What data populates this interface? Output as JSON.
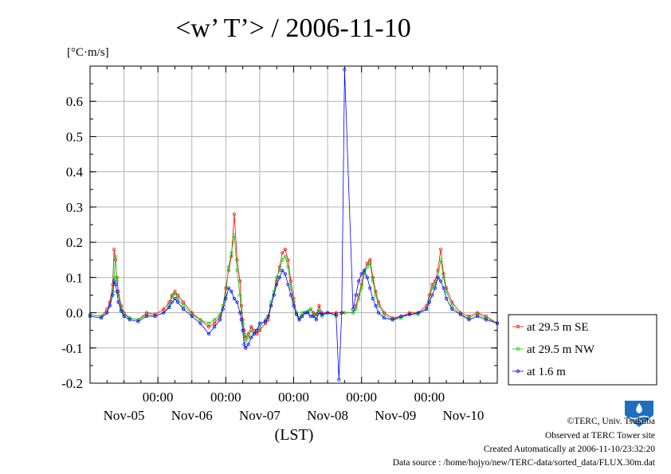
{
  "chart_data": {
    "type": "line",
    "title": "<w’ T’> / 2006-11-10",
    "ylabel": "[°C·m/s]",
    "xlabel": "(LST)",
    "ylim": [
      -0.2,
      0.7
    ],
    "yticks": [
      -0.2,
      -0.1,
      0.0,
      0.1,
      0.2,
      0.3,
      0.4,
      0.5,
      0.6
    ],
    "yticklabels": [
      "-0.2",
      "-0.1",
      "0.0",
      "0.1",
      "0.2",
      "0.3",
      "0.4",
      "0.5",
      "0.6"
    ],
    "x_unit": "hours since 2006-11-04 00:00 LST",
    "xlim": [
      0,
      144
    ],
    "x_time_labels": [
      "00:00",
      "00:00",
      "00:00",
      "00:00",
      "00:00"
    ],
    "x_day_labels": [
      "Nov-05",
      "Nov-06",
      "Nov-07",
      "Nov-08",
      "Nov-09",
      "Nov-10"
    ],
    "grid": true,
    "legend_position": "right",
    "series": [
      {
        "name": "at 29.5 m SE",
        "color": "#ff0000",
        "x": [
          0,
          4,
          6,
          7,
          8,
          8.5,
          9,
          9.5,
          10,
          11,
          12,
          14,
          17,
          20,
          23,
          26,
          28,
          29,
          30,
          31,
          33,
          36,
          39,
          42,
          44,
          46,
          47,
          48,
          49,
          50,
          51,
          52,
          53,
          53.5,
          54,
          54.5,
          55,
          56,
          57,
          58,
          59,
          60,
          62,
          63,
          64,
          65,
          66,
          67,
          68,
          69,
          70,
          71,
          72,
          73,
          74,
          75,
          76,
          77,
          78,
          79,
          80,
          81,
          82,
          84,
          87,
          90,
          93,
          94,
          95,
          96,
          97,
          98,
          99,
          100,
          101,
          102,
          104,
          107,
          110,
          113,
          116,
          119,
          120,
          121,
          122,
          123,
          124,
          125,
          126,
          128,
          131,
          134,
          137,
          140,
          144
        ],
        "y": [
          -0.005,
          -0.01,
          0.01,
          0.03,
          0.08,
          0.18,
          0.15,
          0.1,
          0.06,
          0.02,
          0.0,
          -0.015,
          -0.02,
          0.0,
          -0.005,
          0.01,
          0.03,
          0.05,
          0.06,
          0.05,
          0.03,
          0.0,
          -0.02,
          -0.04,
          -0.03,
          -0.01,
          0.02,
          0.07,
          0.12,
          0.16,
          0.28,
          0.15,
          0.09,
          0.02,
          -0.02,
          -0.05,
          -0.07,
          -0.06,
          -0.04,
          -0.05,
          -0.06,
          -0.05,
          -0.03,
          -0.02,
          0.02,
          0.05,
          0.09,
          0.13,
          0.17,
          0.18,
          0.15,
          0.09,
          0.04,
          0.0,
          -0.02,
          -0.01,
          0.0,
          0.0,
          0.01,
          0.0,
          -0.005,
          0.02,
          0.0,
          0.0,
          0.0,
          0.0,
          0.0,
          0.02,
          0.05,
          0.08,
          0.12,
          0.14,
          0.15,
          0.1,
          0.06,
          0.03,
          0.0,
          -0.015,
          -0.01,
          0.0,
          0.0,
          0.02,
          0.05,
          0.08,
          0.09,
          0.12,
          0.18,
          0.11,
          0.07,
          0.03,
          0.0,
          -0.01,
          0.0,
          -0.01,
          -0.03
        ]
      },
      {
        "name": "at 29.5 m NW",
        "color": "#00cc00",
        "x": [
          0,
          4,
          6,
          7,
          8,
          8.5,
          9,
          9.5,
          10,
          11,
          12,
          14,
          17,
          20,
          23,
          26,
          28,
          29,
          30,
          31,
          33,
          36,
          39,
          42,
          44,
          46,
          47,
          48,
          49,
          50,
          51,
          52,
          53,
          53.5,
          54,
          54.5,
          55,
          56,
          57,
          58,
          59,
          60,
          62,
          63,
          64,
          65,
          66,
          67,
          68,
          69,
          70,
          71,
          72,
          73,
          74,
          75,
          76,
          77,
          78,
          79,
          80,
          81,
          82,
          84,
          87,
          90,
          93,
          94,
          95,
          96,
          97,
          98,
          99,
          100,
          101,
          102,
          104,
          107,
          110,
          113,
          116,
          119,
          120,
          121,
          122,
          123,
          124,
          125,
          126,
          128,
          131,
          134,
          137,
          140,
          144
        ],
        "y": [
          -0.005,
          -0.01,
          0.0,
          0.02,
          0.06,
          0.1,
          0.16,
          0.09,
          0.05,
          0.01,
          -0.005,
          -0.015,
          -0.02,
          -0.005,
          -0.01,
          0.0,
          0.02,
          0.045,
          0.055,
          0.04,
          0.02,
          -0.005,
          -0.02,
          -0.03,
          -0.02,
          -0.005,
          0.02,
          0.05,
          0.13,
          0.17,
          0.22,
          0.12,
          0.05,
          0.0,
          -0.03,
          -0.06,
          -0.08,
          -0.07,
          -0.05,
          -0.06,
          -0.05,
          -0.04,
          -0.02,
          -0.01,
          0.03,
          0.06,
          0.1,
          0.12,
          0.15,
          0.16,
          0.13,
          0.07,
          0.03,
          0.0,
          -0.015,
          0.0,
          0.0,
          0.005,
          0.01,
          -0.005,
          -0.01,
          0.01,
          -0.01,
          0.0,
          -0.01,
          0.0,
          0.0,
          0.01,
          0.04,
          0.07,
          0.11,
          0.13,
          0.14,
          0.09,
          0.05,
          0.02,
          -0.005,
          -0.02,
          -0.015,
          -0.005,
          -0.005,
          0.01,
          0.04,
          0.07,
          0.08,
          0.1,
          0.15,
          0.1,
          0.06,
          0.02,
          -0.005,
          -0.015,
          -0.005,
          -0.015,
          -0.03
        ]
      },
      {
        "name": "at 1.6 m",
        "color": "#0000ff",
        "x": [
          0,
          4,
          6,
          7,
          8,
          8.5,
          9,
          9.5,
          10,
          11,
          12,
          14,
          17,
          20,
          23,
          26,
          28,
          29,
          30,
          31,
          33,
          36,
          39,
          42,
          44,
          46,
          47,
          48,
          49,
          50,
          51,
          52,
          53,
          53.5,
          54,
          54.5,
          55,
          56,
          57,
          58,
          59,
          60,
          62,
          63,
          64,
          65,
          66,
          67,
          68,
          69,
          70,
          71,
          72,
          73,
          74,
          75,
          76,
          77,
          78,
          79,
          80,
          81,
          82,
          84,
          87,
          88,
          89,
          90,
          93,
          94,
          95,
          96,
          97,
          98,
          99,
          100,
          101,
          102,
          104,
          107,
          110,
          113,
          116,
          119,
          120,
          121,
          122,
          123,
          124,
          125,
          126,
          128,
          131,
          134,
          137,
          140,
          144
        ],
        "y": [
          -0.01,
          -0.015,
          0.0,
          0.02,
          0.05,
          0.09,
          0.08,
          0.06,
          0.03,
          0.005,
          -0.01,
          -0.02,
          -0.025,
          -0.01,
          -0.01,
          0.0,
          0.015,
          0.03,
          0.04,
          0.03,
          0.01,
          -0.01,
          -0.03,
          -0.06,
          -0.04,
          -0.02,
          0.01,
          0.04,
          0.07,
          0.06,
          0.04,
          0.03,
          0.0,
          -0.02,
          -0.05,
          -0.09,
          -0.1,
          -0.09,
          -0.07,
          -0.06,
          -0.05,
          -0.03,
          -0.025,
          -0.01,
          0.02,
          0.05,
          0.08,
          0.1,
          0.12,
          0.11,
          0.08,
          0.05,
          0.02,
          -0.005,
          -0.02,
          -0.01,
          0.0,
          0.0,
          -0.01,
          -0.01,
          -0.02,
          0.0,
          -0.005,
          0.0,
          -0.005,
          -0.19,
          0.0,
          0.69,
          0.01,
          0.05,
          0.09,
          0.11,
          0.12,
          0.1,
          0.07,
          0.04,
          0.02,
          0.0,
          -0.015,
          -0.02,
          -0.01,
          -0.005,
          0.0,
          0.01,
          0.03,
          0.05,
          0.07,
          0.1,
          0.09,
          0.07,
          0.04,
          0.01,
          -0.005,
          -0.02,
          -0.01,
          -0.02,
          -0.03
        ]
      }
    ]
  },
  "credits": {
    "copyright": "©TERC, Univ. Tsukuba",
    "observed": "Observed at TERC Tower site",
    "created": "Created Automatically at 2006-11-10/23:32:20",
    "source": "Data source : /home/hojyo/new/TERC-data/sorted_data/FLUX.30m.dat"
  },
  "logo": {
    "name": "terc-logo",
    "text": "TERC",
    "color": "#1f6fbf"
  }
}
